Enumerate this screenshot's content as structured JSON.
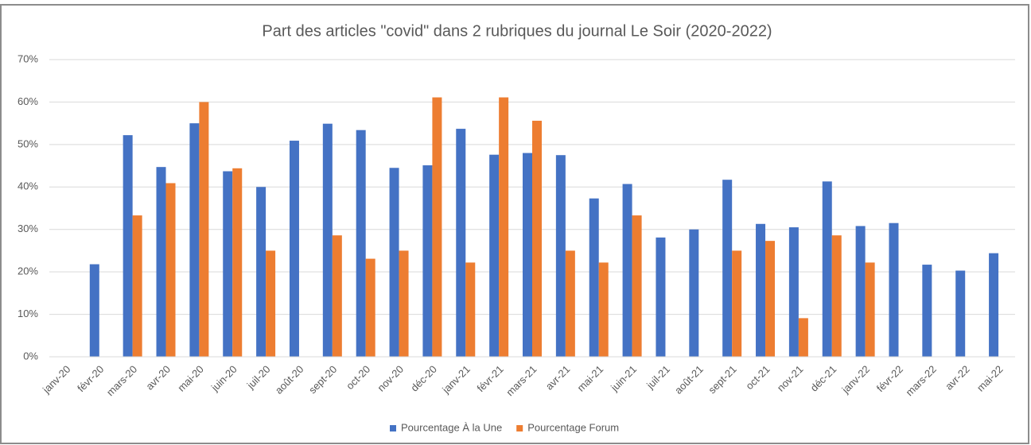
{
  "chart_data": {
    "type": "bar",
    "title": "Part des articles \"covid\" dans 2 rubriques du journal Le Soir (2020-2022)",
    "categories": [
      "janv-20",
      "févr-20",
      "mars-20",
      "avr-20",
      "mai-20",
      "juin-20",
      "juil-20",
      "août-20",
      "sept-20",
      "oct-20",
      "nov-20",
      "déc-20",
      "janv-21",
      "févr-21",
      "mars-21",
      "avr-21",
      "mai-21",
      "juin-21",
      "juil-21",
      "août-21",
      "sept-21",
      "oct-21",
      "nov-21",
      "déc-21",
      "janv-22",
      "févr-22",
      "mars-22",
      "avr-22",
      "mai-22"
    ],
    "series": [
      {
        "name": "Pourcentage À la Une",
        "color": "#4472c4",
        "values": [
          null,
          21.8,
          52.2,
          44.7,
          55,
          43.7,
          40,
          50.9,
          54.9,
          53.4,
          44.5,
          45.1,
          53.7,
          47.6,
          48,
          47.5,
          37.3,
          40.7,
          28.1,
          30,
          41.7,
          31.3,
          30.5,
          41.3,
          30.8,
          31.5,
          21.7,
          20.3,
          24.4
        ]
      },
      {
        "name": "Pourcentage Forum",
        "color": "#ed7d31",
        "values": [
          null,
          null,
          33.3,
          40.9,
          60,
          44.4,
          25,
          null,
          28.6,
          23.1,
          25,
          61.1,
          22.2,
          61.1,
          55.6,
          25,
          22.2,
          33.3,
          null,
          null,
          25,
          27.3,
          9.1,
          28.6,
          22.2,
          null,
          null,
          null,
          null
        ]
      }
    ],
    "ylim": [
      0,
      70
    ],
    "yticks": [
      {
        "value": 0,
        "label": "0%"
      },
      {
        "value": 10,
        "label": "10%"
      },
      {
        "value": 20,
        "label": "20%"
      },
      {
        "value": 30,
        "label": "30%"
      },
      {
        "value": 40,
        "label": "40%"
      },
      {
        "value": 50,
        "label": "50%"
      },
      {
        "value": 60,
        "label": "60%"
      },
      {
        "value": 70,
        "label": "70%"
      }
    ],
    "grid": true,
    "legend": "bottom"
  }
}
